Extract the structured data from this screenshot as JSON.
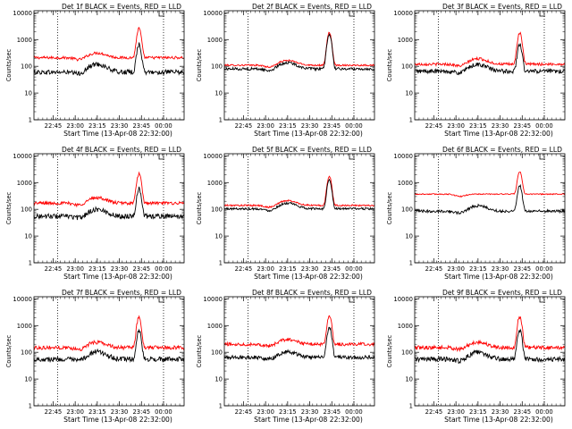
{
  "chart_data": {
    "type": "line",
    "layout": "3x3 grid",
    "shared": {
      "xlabel": "Start Time (13-Apr-08 22:32:00)",
      "ylabel": "Counts/sec",
      "x_tick_labels": [
        "22:45",
        "23:00",
        "23:15",
        "23:30",
        "23:45",
        "00:00"
      ],
      "x_ticks_hours": [
        22.75,
        23.0,
        23.25,
        23.5,
        23.75,
        24.0
      ],
      "xlim_hours": [
        22.533,
        24.233
      ],
      "yscale": "log",
      "ylim": [
        1,
        12000
      ],
      "y_tick_labels": [
        "1",
        "10",
        "100",
        "1000",
        "10000"
      ],
      "y_ticks": [
        1,
        10,
        100,
        1000,
        10000
      ],
      "vertical_dotted_lines_hours": [
        22.8,
        24.0
      ],
      "grid": false,
      "series_colors": {
        "events": "#000000",
        "lld": "#ff0000"
      }
    },
    "panels": [
      {
        "title": "Det 1f BLACK = Events, RED = LLD",
        "events": {
          "base": 60,
          "bump": 2.0,
          "peak": 600,
          "noise": 0.09
        },
        "lld": {
          "base": 210,
          "bump": 1.5,
          "peak": 2400,
          "noise": 0.05
        }
      },
      {
        "title": "Det 2f BLACK = Events, RED = LLD",
        "events": {
          "base": 80,
          "bump": 1.7,
          "peak": 1500,
          "noise": 0.05
        },
        "lld": {
          "base": 110,
          "bump": 1.5,
          "peak": 1700,
          "noise": 0.03
        }
      },
      {
        "title": "Det 3f BLACK = Events, RED = LLD",
        "events": {
          "base": 65,
          "bump": 1.8,
          "peak": 600,
          "noise": 0.08
        },
        "lld": {
          "base": 120,
          "bump": 1.6,
          "peak": 1700,
          "noise": 0.05
        }
      },
      {
        "title": "Det 4f BLACK = Events, RED = LLD",
        "events": {
          "base": 55,
          "bump": 1.8,
          "peak": 550,
          "noise": 0.09
        },
        "lld": {
          "base": 170,
          "bump": 1.6,
          "peak": 2000,
          "noise": 0.06
        }
      },
      {
        "title": "Det 5f BLACK = Events, RED = LLD",
        "events": {
          "base": 105,
          "bump": 1.6,
          "peak": 1200,
          "noise": 0.04
        },
        "lld": {
          "base": 140,
          "bump": 1.5,
          "peak": 1600,
          "noise": 0.03
        }
      },
      {
        "title": "Det 6f BLACK = Events, RED = LLD",
        "events": {
          "base": 85,
          "bump": 1.6,
          "peak": 700,
          "noise": 0.05
        },
        "lld": {
          "base": 370,
          "bump": 1.0,
          "peak": 2200,
          "noise": 0.02
        }
      },
      {
        "title": "Det 7f BLACK = Events, RED = LLD",
        "events": {
          "base": 55,
          "bump": 1.9,
          "peak": 550,
          "noise": 0.09
        },
        "lld": {
          "base": 150,
          "bump": 1.6,
          "peak": 1900,
          "noise": 0.07
        }
      },
      {
        "title": "Det 8f BLACK = Events, RED = LLD",
        "events": {
          "base": 65,
          "bump": 1.6,
          "peak": 800,
          "noise": 0.07
        },
        "lld": {
          "base": 200,
          "bump": 1.5,
          "peak": 2200,
          "noise": 0.06
        }
      },
      {
        "title": "Det 9f BLACK = Events, RED = LLD",
        "events": {
          "base": 55,
          "bump": 1.8,
          "peak": 600,
          "noise": 0.09
        },
        "lld": {
          "base": 150,
          "bump": 1.6,
          "peak": 2000,
          "noise": 0.07
        }
      }
    ]
  }
}
